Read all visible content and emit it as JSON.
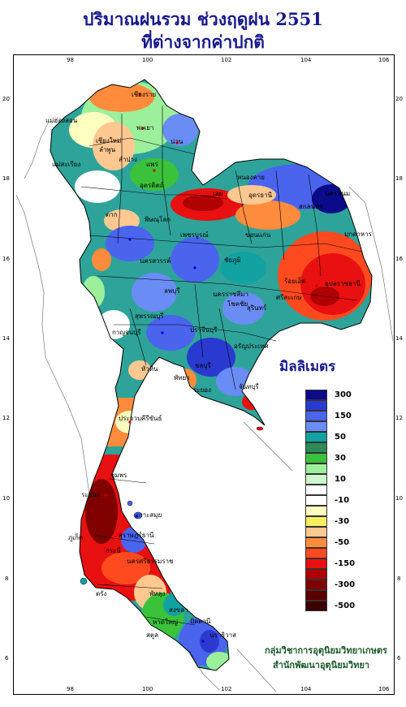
{
  "title": {
    "line1": "ปริมาณฝนรวม ช่วงฤดูฝน 2551",
    "line2": "ที่ต่างจากค่าปกติ"
  },
  "axes": {
    "top_ticks": [
      "98",
      "100",
      "102",
      "104",
      "106"
    ],
    "bottom_ticks": [
      "98",
      "100",
      "102",
      "104",
      "106"
    ],
    "left_ticks": [
      "20",
      "18",
      "16",
      "14",
      "12",
      "10",
      "8",
      "6"
    ],
    "right_ticks": [
      "20",
      "18",
      "16",
      "14",
      "12",
      "10",
      "8",
      "6"
    ]
  },
  "legend": {
    "title": "มิลลิเมตร",
    "bins": [
      {
        "color": "#0a0a8a",
        "label": "300"
      },
      {
        "color": "#2a3ad0",
        "label": ""
      },
      {
        "color": "#4a64ee",
        "label": "150"
      },
      {
        "color": "#6a8cf5",
        "label": ""
      },
      {
        "color": "#12a2a2",
        "label": "50"
      },
      {
        "color": "#2e8b57",
        "label": ""
      },
      {
        "color": "#3bc23b",
        "label": "30"
      },
      {
        "color": "#9cf09c",
        "label": ""
      },
      {
        "color": "#cdf7cd",
        "label": "10"
      },
      {
        "color": "#ffffff",
        "label": ""
      },
      {
        "color": "#ffffff",
        "label": "-10"
      },
      {
        "color": "#ffffc0",
        "label": ""
      },
      {
        "color": "#f7ee60",
        "label": "-30"
      },
      {
        "color": "#ffc891",
        "label": ""
      },
      {
        "color": "#ff8c3c",
        "label": "-50"
      },
      {
        "color": "#ff4a20",
        "label": ""
      },
      {
        "color": "#e81010",
        "label": "-150"
      },
      {
        "color": "#b00000",
        "label": ""
      },
      {
        "color": "#800000",
        "label": "-300"
      },
      {
        "color": "#5a0000",
        "label": ""
      },
      {
        "color": "#3a0000",
        "label": "-500"
      }
    ]
  },
  "places": [
    {
      "name": "เชียงราย"
    },
    {
      "name": "แม่ฮ่องสอน"
    },
    {
      "name": "พะเยา"
    },
    {
      "name": "เชียงใหม่"
    },
    {
      "name": "ลำพูน"
    },
    {
      "name": "ลำปาง"
    },
    {
      "name": "น่าน"
    },
    {
      "name": "แม่สะเรียง"
    },
    {
      "name": "แพร่"
    },
    {
      "name": "อุตรดิตถ์"
    },
    {
      "name": "ตาก"
    },
    {
      "name": "เลย"
    },
    {
      "name": "หนองคาย"
    },
    {
      "name": "อุดรธานี"
    },
    {
      "name": "นครพนม"
    },
    {
      "name": "สกลนคร"
    },
    {
      "name": "มุกดาหาร"
    },
    {
      "name": "พิษณุโลก"
    },
    {
      "name": "เพชรบูรณ์"
    },
    {
      "name": "ขอนแก่น"
    },
    {
      "name": "นครสวรรค์"
    },
    {
      "name": "ชัยภูมิ"
    },
    {
      "name": "ร้อยเอ็ด"
    },
    {
      "name": "อุบลราชธานี"
    },
    {
      "name": "ศรีสะเกษ"
    },
    {
      "name": "ลพบุรี"
    },
    {
      "name": "สุพรรณบุรี"
    },
    {
      "name": "นครราชสีมา"
    },
    {
      "name": "โชคชัย"
    },
    {
      "name": "สุรินทร์"
    },
    {
      "name": "กาญจนบุรี"
    },
    {
      "name": "ปราจีนบุรี"
    },
    {
      "name": "อรัญประเทศ"
    },
    {
      "name": "ชลบุรี"
    },
    {
      "name": "พัทยา"
    },
    {
      "name": "ระยอง"
    },
    {
      "name": "จันทบุรี"
    },
    {
      "name": "หัวหิน"
    },
    {
      "name": "ประจวบคีรีขันธ์"
    },
    {
      "name": "ชุมพร"
    },
    {
      "name": "ระนอง"
    },
    {
      "name": "เกาะสมุย"
    },
    {
      "name": "สุราษฎร์ธานี"
    },
    {
      "name": "นครศรีธรรมราช"
    },
    {
      "name": "ภูเก็ต"
    },
    {
      "name": "กระบี่"
    },
    {
      "name": "ตรัง"
    },
    {
      "name": "พัทลุง"
    },
    {
      "name": "สงขลา"
    },
    {
      "name": "หาดใหญ่"
    },
    {
      "name": "ปัตตานี"
    },
    {
      "name": "นราธิวาส"
    },
    {
      "name": "สตูล"
    }
  ],
  "credit": {
    "line1": "กลุ่มวิชาการอุตุนิยมวิทยาเกษตร",
    "line2": "สำนักพัฒนาอุตุนิยมวิทยา"
  }
}
